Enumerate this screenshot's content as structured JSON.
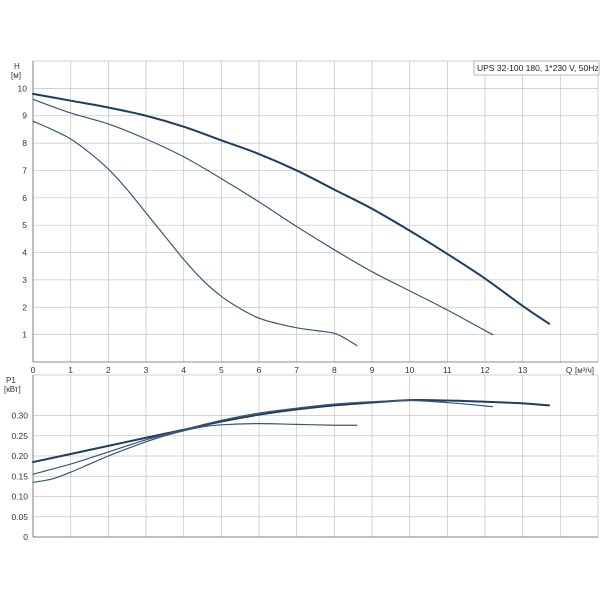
{
  "chart_data": [
    {
      "type": "line",
      "title": "UPS 32-100  180, 1*230 V, 50Hz",
      "ylabel": "H",
      "yunit": "[м]",
      "xlabel": "Q",
      "xunit": "[м³/ч]",
      "xlim": [
        0,
        15
      ],
      "ylim": [
        0,
        11
      ],
      "x_ticks": [
        "0",
        "1",
        "2",
        "3",
        "4",
        "5",
        "6",
        "7",
        "8",
        "9",
        "10",
        "11",
        "12",
        "13"
      ],
      "y_ticks": [
        "1",
        "2",
        "3",
        "4",
        "5",
        "6",
        "7",
        "8",
        "9",
        "10"
      ],
      "grid": true,
      "series": [
        {
          "x": [
            0,
            1,
            2,
            3,
            4,
            5,
            6,
            7,
            8,
            9,
            10,
            11,
            12,
            13,
            13.7
          ],
          "y": [
            9.8,
            9.55,
            9.3,
            9.0,
            8.6,
            8.1,
            7.6,
            7.0,
            6.3,
            5.6,
            4.8,
            3.95,
            3.05,
            2.05,
            1.4
          ]
        },
        {
          "x": [
            0,
            1,
            2,
            3,
            4,
            5,
            6,
            7,
            8,
            9,
            10,
            11,
            12.2
          ],
          "y": [
            9.6,
            9.1,
            8.7,
            8.15,
            7.5,
            6.7,
            5.85,
            4.95,
            4.1,
            3.3,
            2.6,
            1.9,
            1.0
          ]
        },
        {
          "x": [
            0,
            0.5,
            1,
            1.5,
            2,
            2.5,
            3,
            3.5,
            4,
            4.5,
            5,
            5.5,
            6,
            6.5,
            7,
            7.5,
            8,
            8.3,
            8.6
          ],
          "y": [
            8.8,
            8.5,
            8.15,
            7.65,
            7.05,
            6.3,
            5.45,
            4.6,
            3.75,
            3.0,
            2.4,
            1.95,
            1.6,
            1.4,
            1.25,
            1.15,
            1.05,
            0.85,
            0.6
          ]
        }
      ]
    },
    {
      "type": "line",
      "ylabel": "P1",
      "yunit": "[кВт]",
      "xlim": [
        0,
        15
      ],
      "ylim": [
        0,
        0.4
      ],
      "x_ticks": [],
      "y_ticks": [
        "0",
        "0.05",
        "0.10",
        "0.15",
        "0.20",
        "0.25",
        "0.30"
      ],
      "grid": true,
      "series": [
        {
          "x": [
            0,
            1,
            2,
            3,
            4,
            5,
            6,
            7,
            8,
            9,
            10,
            11,
            12,
            13,
            13.7
          ],
          "y": [
            0.185,
            0.205,
            0.225,
            0.245,
            0.265,
            0.285,
            0.302,
            0.315,
            0.325,
            0.332,
            0.338,
            0.337,
            0.334,
            0.33,
            0.325
          ]
        },
        {
          "x": [
            0,
            1,
            2,
            3,
            4,
            5,
            6,
            7,
            8,
            9,
            10,
            11,
            12.2
          ],
          "y": [
            0.155,
            0.18,
            0.21,
            0.24,
            0.265,
            0.288,
            0.306,
            0.318,
            0.328,
            0.334,
            0.337,
            0.332,
            0.322
          ]
        },
        {
          "x": [
            0,
            0.5,
            1,
            1.5,
            2,
            2.5,
            3,
            3.5,
            4,
            4.5,
            5,
            6,
            7,
            8,
            8.6
          ],
          "y": [
            0.135,
            0.143,
            0.16,
            0.18,
            0.2,
            0.218,
            0.235,
            0.25,
            0.262,
            0.272,
            0.277,
            0.28,
            0.278,
            0.276,
            0.276
          ]
        }
      ]
    }
  ],
  "colors": {
    "curve_max": "#1d3d62",
    "curve_mid": "#3a5676",
    "curve_min": "#3a5676"
  }
}
